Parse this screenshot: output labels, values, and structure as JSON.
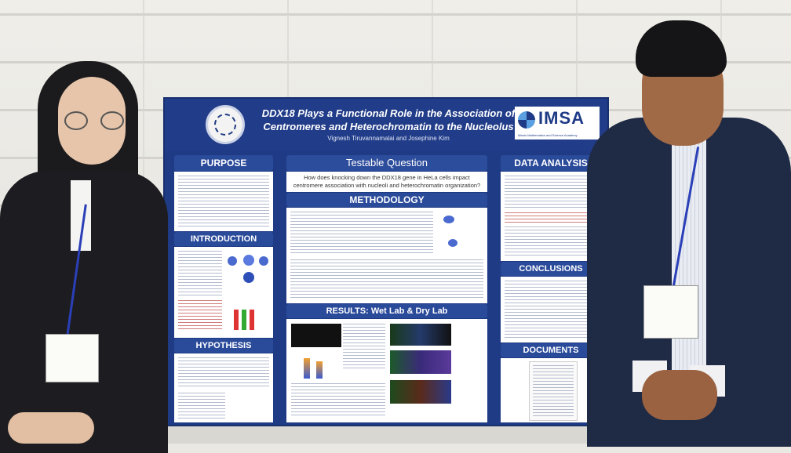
{
  "poster": {
    "title_line1": "DDX18 Plays a Functional Role in the Association of",
    "title_line2": "Centromeres and Heterochromatin to the Nucleolus",
    "authors": "Vignesh Tiruvannamalai and Josephine Kim",
    "logo_text": "IMSA",
    "logo_subtitle": "Illinois Mathematics and Science Academy",
    "sections": {
      "purpose": "PURPOSE",
      "introduction": "INTRODUCTION",
      "hypothesis": "HYPOTHESIS",
      "testable_question": "Testable Question",
      "testable_question_text": "How does knocking down the DDX18 gene in HeLa cells impact centromere association with nucleoli and heterochromatin organization?",
      "methodology": "METHODOLOGY",
      "results": "RESULTS: Wet Lab & Dry Lab",
      "data_analysis": "DATA ANALYSIS",
      "conclusions": "CONCLUSIONS",
      "documents": "DOCUMENTS"
    }
  },
  "colors": {
    "poster_blue": "#1f3b86",
    "header_blue": "#2a4a9a",
    "lanyard_blue": "#2a3fb8"
  }
}
